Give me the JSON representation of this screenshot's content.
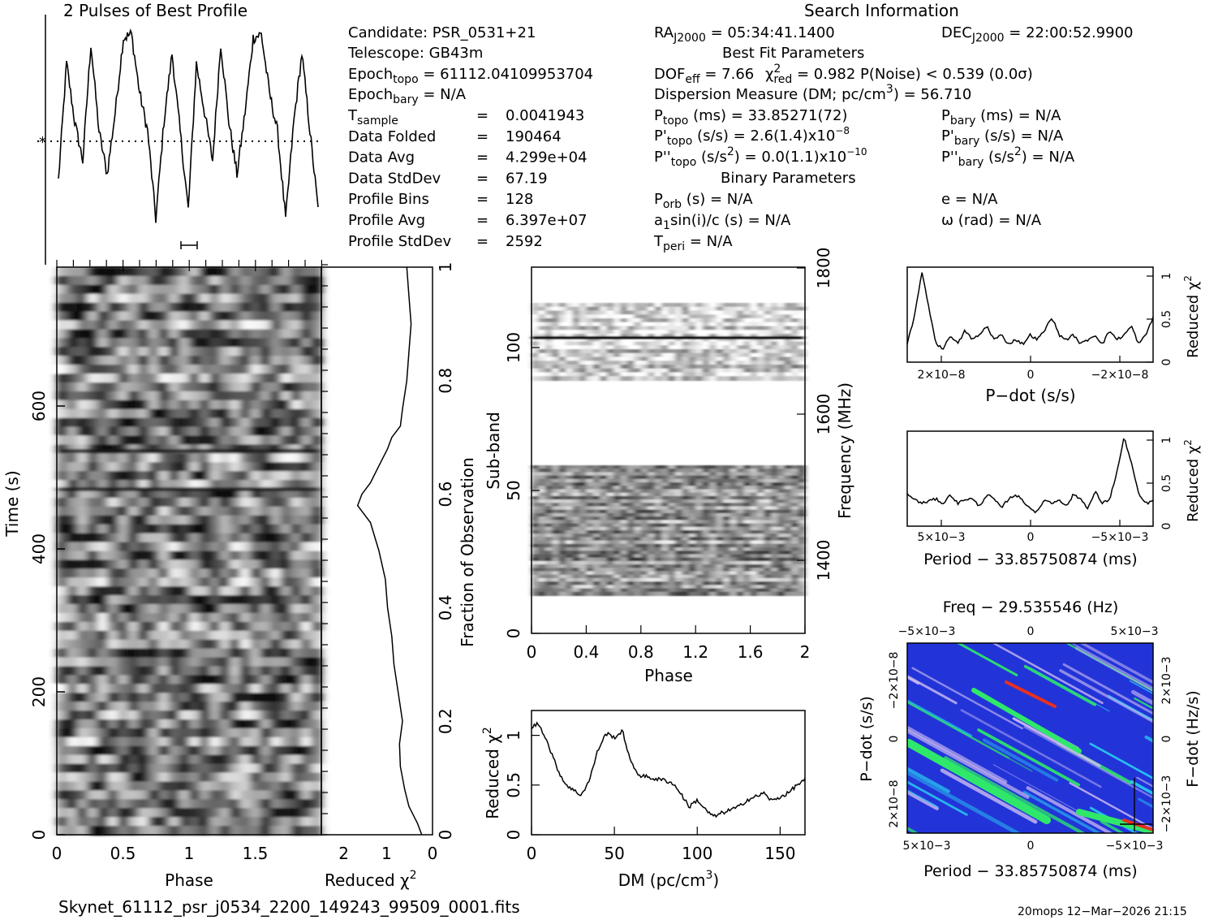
{
  "header": {
    "profile_title": "2 Pulses of Best Profile",
    "search_title": "Search Information",
    "best_fit_title": "Best Fit Parameters",
    "binary_title": "Binary Parameters"
  },
  "candidate_info": {
    "candidate": "Candidate:  PSR_0531+21",
    "telescope": "Telescope:  GB43m",
    "epoch_topo": "Epoch",
    "epoch_topo_sub": "topo",
    "epoch_topo_val": " = 61112.04109953704",
    "epoch_bary": "Epoch",
    "epoch_bary_sub": "bary",
    "epoch_bary_val": " = N/A",
    "rows": [
      {
        "label": "T",
        "sub": "sample",
        "eq": "=",
        "value": "0.0041943"
      },
      {
        "label": "Data Folded",
        "sub": "",
        "eq": "=",
        "value": "190464"
      },
      {
        "label": "Data Avg",
        "sub": "",
        "eq": "=",
        "value": "4.299e+04"
      },
      {
        "label": "Data StdDev",
        "sub": "",
        "eq": "=",
        "value": "67.19"
      },
      {
        "label": "Profile Bins",
        "sub": "",
        "eq": "=",
        "value": "128"
      },
      {
        "label": "Profile Avg",
        "sub": "",
        "eq": "=",
        "value": "6.397e+07"
      },
      {
        "label": "Profile StdDev",
        "sub": "",
        "eq": "=",
        "value": "2592"
      }
    ]
  },
  "search_info": {
    "ra_label": "RA",
    "ra_sub": "J2000",
    "ra_val": " = 05:34:41.1400",
    "dec_label": "DEC",
    "dec_sub": "J2000",
    "dec_val": " = 22:00:52.9900",
    "dof": "DOF",
    "dof_sub": "eff",
    "dof_val": " = 7.66  ",
    "chi": "χ",
    "chi_sup": "2",
    "chi_sub": "red",
    "chi_val": " = 0.982   P(Noise) < 0.539   (0.0σ)",
    "dm_line": "Dispersion Measure (DM; pc/cm",
    "dm_sup": "3",
    "dm_tail": ") = 56.710",
    "ptopo": "P",
    "ptopo_sub": "topo",
    "ptopo_val": " (ms) =  33.85271(72)",
    "pbary": "P",
    "pbary_sub": "bary",
    "pbary_val": " (ms) = N/A",
    "pdtopo": "P'",
    "pdtopo_sub": "topo",
    "pdtopo_val": " (s/s) =  2.6(1.4)x10",
    "pdtopo_exp": "−8",
    "pdbary": "P'",
    "pdbary_sub": "bary",
    "pdbary_val": " (s/s) = N/A",
    "pddtopo": "P''",
    "pddtopo_sub": "topo",
    "pddtopo_val": " (s/s",
    "pddtopo_sup": "2",
    "pddtopo_val2": ") = 0.0(1.1)x10",
    "pddtopo_exp": "−10",
    "pddbary": "P''",
    "pddbary_sub": "bary",
    "pddbary_val": " (s/s",
    "pddbary_sup": "2",
    "pddbary_val2": ") = N/A",
    "porb": "P",
    "porb_sub": "orb",
    "porb_val": " (s) = N/A",
    "ecc": "e = N/A",
    "a1": "a",
    "a1_sub": "1",
    "a1_val": "sin(i)/c (s) = N/A",
    "omega": "ω (rad) = N/A",
    "tperi": "T",
    "tperi_sub": "peri",
    "tperi_val": " = N/A"
  },
  "footer": {
    "filename": "Skynet_61112_psr_j0534_2200_149243_99509_0001.fits",
    "stamp": "20mops 12−Mar−2026 21:15"
  },
  "colors": {
    "ink": "#000000",
    "grey_dark": "#222222",
    "heatmap_blue": "#2234d8",
    "heatmap_cyan": "#29c8f0",
    "heatmap_green": "#2fe86a",
    "heatmap_violet": "#c9b8f2",
    "heatmap_red": "#e8301c"
  },
  "chart_data": [
    {
      "type": "line",
      "name": "profile",
      "title": "2 Pulses of Best Profile",
      "x": [
        0.0,
        0.0625,
        0.125,
        0.1875,
        0.25,
        0.3125,
        0.375,
        0.4375,
        0.5,
        0.5625,
        0.625,
        0.6875,
        0.75,
        0.8125,
        0.875,
        0.9375,
        1.0,
        1.0625,
        1.125,
        1.1875,
        1.25,
        1.3125,
        1.375,
        1.4375,
        1.5,
        1.5625,
        1.625,
        1.6875,
        1.75,
        1.8125,
        1.875,
        1.9375,
        2.0
      ],
      "values": [
        0.25,
        0.85,
        0.55,
        0.35,
        0.95,
        0.5,
        0.28,
        0.6,
        0.98,
        1.0,
        0.7,
        0.5,
        0.05,
        0.55,
        0.9,
        0.5,
        0.1,
        0.85,
        0.6,
        0.35,
        0.95,
        0.55,
        0.28,
        0.6,
        0.98,
        1.0,
        0.7,
        0.5,
        0.05,
        0.55,
        0.9,
        0.5,
        0.1
      ],
      "xlim": [
        0,
        2
      ]
    },
    {
      "type": "heatmap",
      "name": "time-phase",
      "xlabel": "Phase",
      "ylabel": "Time (s)",
      "xticks": [
        "0",
        "0.5",
        "1",
        "1.5"
      ],
      "yticks": [
        "0",
        "200",
        "400",
        "600"
      ],
      "xlim": [
        0,
        2
      ],
      "ylim": [
        0,
        793
      ]
    },
    {
      "type": "line",
      "name": "time-chi2",
      "xlabel": "Reduced χ2",
      "xticks": [
        "2",
        "1",
        "0"
      ],
      "yticks_right": [
        "0",
        "0.2",
        "0.4",
        "0.6",
        "0.8",
        "1"
      ],
      "ylabel_right": "Fraction of Observation",
      "xlim": [
        2.6,
        0
      ],
      "frac": [
        0.0,
        0.02,
        0.05,
        0.08,
        0.12,
        0.16,
        0.2,
        0.25,
        0.3,
        0.35,
        0.4,
        0.45,
        0.5,
        0.55,
        0.58,
        0.6,
        0.62,
        0.65,
        0.68,
        0.7,
        0.72,
        0.75,
        0.8,
        0.85,
        0.9,
        0.95,
        1.0
      ],
      "chi": [
        0.1,
        0.2,
        0.4,
        0.5,
        0.6,
        0.62,
        0.55,
        0.65,
        0.75,
        0.8,
        0.9,
        0.95,
        1.1,
        1.3,
        1.6,
        1.5,
        1.3,
        1.1,
        0.9,
        0.8,
        0.6,
        0.55,
        0.45,
        0.4,
        0.35,
        0.4,
        0.45
      ]
    },
    {
      "type": "heatmap",
      "name": "subband-phase",
      "xlabel": "Phase",
      "ylabel": "Sub-band",
      "ylabel_right": "Frequency (MHz)",
      "xticks": [
        "0",
        "0.4",
        "0.8",
        "1.2",
        "1.6",
        "2"
      ],
      "yticks": [
        "0",
        "50",
        "100"
      ],
      "yticks_right": [
        "1400",
        "1600",
        "1800"
      ],
      "xlim": [
        0,
        2
      ],
      "ylim": [
        0,
        128
      ]
    },
    {
      "type": "line",
      "name": "dm-chi2",
      "xlabel": "DM (pc/cm3)",
      "ylabel": "Reduced χ2",
      "xticks": [
        "0",
        "50",
        "100",
        "150"
      ],
      "yticks": [
        "0",
        "0.5",
        "1"
      ],
      "x": [
        0,
        4,
        8,
        12,
        16,
        20,
        25,
        30,
        35,
        40,
        45,
        50,
        55,
        60,
        65,
        70,
        75,
        80,
        85,
        90,
        95,
        100,
        105,
        110,
        115,
        120,
        125,
        130,
        135,
        140,
        145,
        150,
        155,
        160,
        165
      ],
      "values": [
        1.08,
        1.12,
        1.0,
        0.82,
        0.65,
        0.52,
        0.45,
        0.4,
        0.55,
        0.85,
        1.02,
        0.98,
        1.04,
        0.72,
        0.6,
        0.58,
        0.56,
        0.55,
        0.52,
        0.42,
        0.28,
        0.35,
        0.25,
        0.18,
        0.22,
        0.25,
        0.28,
        0.35,
        0.38,
        0.42,
        0.34,
        0.38,
        0.42,
        0.5,
        0.55
      ],
      "xlim": [
        0,
        165
      ],
      "ylim": [
        0,
        1.25
      ]
    },
    {
      "type": "line",
      "name": "pdot-chi2",
      "xlabel": "P−dot (s/s)",
      "ylabel_right": "Reduced χ2",
      "xticks": [
        "2×10−8",
        "0",
        "−2×10−8"
      ],
      "yticks_right": [
        "0",
        "0.5",
        "1"
      ],
      "values": [
        0.2,
        0.5,
        1.0,
        0.6,
        0.2,
        0.15,
        0.3,
        0.2,
        0.35,
        0.25,
        0.3,
        0.4,
        0.25,
        0.3,
        0.2,
        0.25,
        0.2,
        0.3,
        0.25,
        0.35,
        0.5,
        0.3,
        0.25,
        0.3,
        0.2,
        0.25,
        0.3,
        0.2,
        0.35,
        0.25,
        0.3,
        0.4,
        0.2,
        0.3,
        0.5
      ],
      "ylim": [
        0,
        1.05
      ]
    },
    {
      "type": "line",
      "name": "period-chi2",
      "xlabel": "Period − 33.85750874 (ms)",
      "ylabel_right": "Reduced χ2",
      "xticks": [
        "5×10−3",
        "0",
        "−5×10−3"
      ],
      "yticks_right": [
        "0",
        "0.5",
        "1"
      ],
      "values": [
        0.35,
        0.3,
        0.25,
        0.28,
        0.3,
        0.25,
        0.35,
        0.25,
        0.3,
        0.3,
        0.22,
        0.35,
        0.3,
        0.2,
        0.3,
        0.35,
        0.28,
        0.2,
        0.15,
        0.3,
        0.25,
        0.3,
        0.22,
        0.35,
        0.3,
        0.2,
        0.38,
        0.25,
        0.3,
        0.6,
        0.98,
        0.7,
        0.35,
        0.25,
        0.28
      ],
      "ylim": [
        0,
        1.05
      ]
    },
    {
      "type": "heatmap",
      "name": "period-pdot",
      "title": "Freq − 29.535546 (Hz)",
      "xlabel": "Period − 33.85750874 (ms)",
      "ylabel": "P−dot (s/s)",
      "ylabel_right": "F−dot (Hz/s)",
      "xticks": [
        "5×10−3",
        "0",
        "−5×10−3"
      ],
      "xticks_top": [
        "−5×10−3",
        "0",
        "5×10−3"
      ],
      "yticks": [
        "−2×10−8",
        "0",
        "2×10−8"
      ],
      "yticks_right": [
        "2×10−3",
        "0",
        "−2×10−3"
      ]
    }
  ]
}
